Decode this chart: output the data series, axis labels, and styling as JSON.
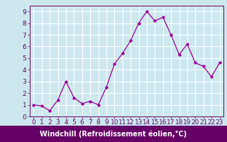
{
  "x": [
    0,
    1,
    2,
    3,
    4,
    5,
    6,
    7,
    8,
    9,
    10,
    11,
    12,
    13,
    14,
    15,
    16,
    17,
    18,
    19,
    20,
    21,
    22,
    23
  ],
  "y": [
    1.0,
    0.9,
    0.5,
    1.4,
    3.0,
    1.6,
    1.1,
    1.3,
    1.0,
    2.5,
    4.5,
    5.4,
    6.5,
    8.0,
    9.0,
    8.2,
    8.5,
    7.0,
    5.3,
    6.2,
    4.6,
    4.3,
    3.4,
    4.6
  ],
  "line_color": "#990099",
  "marker": "o",
  "marker_size": 2.5,
  "background_color": "#cce8ee",
  "grid_color": "#ffffff",
  "xlabel": "Windchill (Refroidissement éolien,°C)",
  "xlabel_color": "#ffffff",
  "xlabel_bg": "#660066",
  "xlim": [
    -0.5,
    23.5
  ],
  "ylim": [
    0,
    9.5
  ],
  "yticks": [
    0,
    1,
    2,
    3,
    4,
    5,
    6,
    7,
    8,
    9
  ],
  "xticks": [
    0,
    1,
    2,
    3,
    4,
    5,
    6,
    7,
    8,
    9,
    10,
    11,
    12,
    13,
    14,
    15,
    16,
    17,
    18,
    19,
    20,
    21,
    22,
    23
  ],
  "tick_color": "#660066",
  "axis_color": "#660066",
  "label_fontsize": 7.0,
  "tick_fontsize": 6.5
}
